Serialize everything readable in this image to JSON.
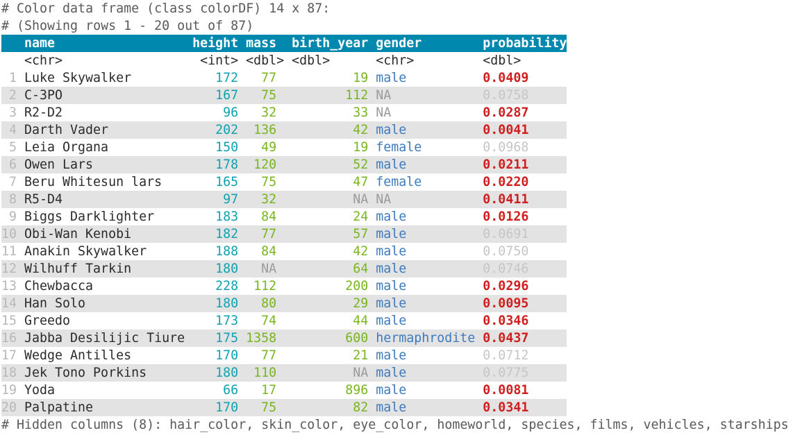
{
  "colors": {
    "comment": "#595959",
    "header-bg": "#0088af",
    "header-fg": "#ffffff",
    "row-alt-bg": "#e3e3e3",
    "text": "#2b2b2b",
    "row-num": "#b8b8b8",
    "teal": "#0fa2b2",
    "green": "#78b520",
    "blue": "#3d7bbf",
    "na": "#9b9b9b",
    "sig": "#d01f1f",
    "nonsig": "#c6c6c6"
  },
  "console": {
    "line1": "# Color data frame (class colorDF) 14 x 87:",
    "line2": "# (Showing rows 1 - 20 out of 87)",
    "footer": "# Hidden columns (8): hair_color, skin_color, eye_color, homeworld, species, films, vehicles, starships"
  },
  "table": {
    "columns": [
      "name",
      "height",
      "mass",
      "birth_year",
      "gender",
      "probability"
    ],
    "types": [
      "<chr>",
      "<int>",
      "<dbl>",
      "<dbl>",
      "<chr>",
      "<dbl>"
    ],
    "significance_threshold": 0.05,
    "rows": [
      {
        "num": "1",
        "name": "Luke Skywalker",
        "height": "172",
        "mass": "77",
        "birth_year": "19",
        "gender": "male",
        "probability": "0.0409"
      },
      {
        "num": "2",
        "name": "C-3PO",
        "height": "167",
        "mass": "75",
        "birth_year": "112",
        "gender": "NA",
        "probability": "0.0758"
      },
      {
        "num": "3",
        "name": "R2-D2",
        "height": "96",
        "mass": "32",
        "birth_year": "33",
        "gender": "NA",
        "probability": "0.0287"
      },
      {
        "num": "4",
        "name": "Darth Vader",
        "height": "202",
        "mass": "136",
        "birth_year": "42",
        "gender": "male",
        "probability": "0.0041"
      },
      {
        "num": "5",
        "name": "Leia Organa",
        "height": "150",
        "mass": "49",
        "birth_year": "19",
        "gender": "female",
        "probability": "0.0968"
      },
      {
        "num": "6",
        "name": "Owen Lars",
        "height": "178",
        "mass": "120",
        "birth_year": "52",
        "gender": "male",
        "probability": "0.0211"
      },
      {
        "num": "7",
        "name": "Beru Whitesun lars",
        "height": "165",
        "mass": "75",
        "birth_year": "47",
        "gender": "female",
        "probability": "0.0220"
      },
      {
        "num": "8",
        "name": "R5-D4",
        "height": "97",
        "mass": "32",
        "birth_year": "NA",
        "gender": "NA",
        "probability": "0.0411"
      },
      {
        "num": "9",
        "name": "Biggs Darklighter",
        "height": "183",
        "mass": "84",
        "birth_year": "24",
        "gender": "male",
        "probability": "0.0126"
      },
      {
        "num": "10",
        "name": "Obi-Wan Kenobi",
        "height": "182",
        "mass": "77",
        "birth_year": "57",
        "gender": "male",
        "probability": "0.0691"
      },
      {
        "num": "11",
        "name": "Anakin Skywalker",
        "height": "188",
        "mass": "84",
        "birth_year": "42",
        "gender": "male",
        "probability": "0.0750"
      },
      {
        "num": "12",
        "name": "Wilhuff Tarkin",
        "height": "180",
        "mass": "NA",
        "birth_year": "64",
        "gender": "male",
        "probability": "0.0746"
      },
      {
        "num": "13",
        "name": "Chewbacca",
        "height": "228",
        "mass": "112",
        "birth_year": "200",
        "gender": "male",
        "probability": "0.0296"
      },
      {
        "num": "14",
        "name": "Han Solo",
        "height": "180",
        "mass": "80",
        "birth_year": "29",
        "gender": "male",
        "probability": "0.0095"
      },
      {
        "num": "15",
        "name": "Greedo",
        "height": "173",
        "mass": "74",
        "birth_year": "44",
        "gender": "male",
        "probability": "0.0346"
      },
      {
        "num": "16",
        "name": "Jabba Desilijic Tiure",
        "height": "175",
        "mass": "1358",
        "birth_year": "600",
        "gender": "hermaphrodite",
        "probability": "0.0437"
      },
      {
        "num": "17",
        "name": "Wedge Antilles",
        "height": "170",
        "mass": "77",
        "birth_year": "21",
        "gender": "male",
        "probability": "0.0712"
      },
      {
        "num": "18",
        "name": "Jek Tono Porkins",
        "height": "180",
        "mass": "110",
        "birth_year": "NA",
        "gender": "male",
        "probability": "0.0775"
      },
      {
        "num": "19",
        "name": "Yoda",
        "height": "66",
        "mass": "17",
        "birth_year": "896",
        "gender": "male",
        "probability": "0.0081"
      },
      {
        "num": "20",
        "name": "Palpatine",
        "height": "170",
        "mass": "75",
        "birth_year": "82",
        "gender": "male",
        "probability": "0.0341"
      }
    ]
  }
}
